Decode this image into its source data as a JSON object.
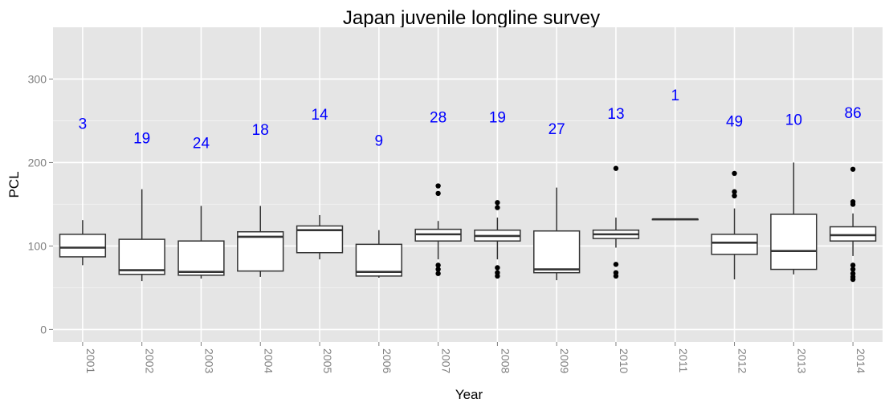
{
  "chart_data": {
    "type": "box",
    "title": "Japan juvenile longline survey",
    "xlabel": "Year",
    "ylabel": "PCL",
    "ylim": [
      -15,
      362
    ],
    "yticks": [
      0,
      100,
      200,
      300
    ],
    "grid": true,
    "categories": [
      "2001",
      "2002",
      "2003",
      "2004",
      "2005",
      "2006",
      "2007",
      "2008",
      "2009",
      "2010",
      "2011",
      "2012",
      "2013",
      "2014"
    ],
    "boxes": [
      {
        "min": 77,
        "q1": 87,
        "median": 98,
        "q3": 114,
        "max": 131,
        "outliers": [],
        "n": "3",
        "n_y": 247
      },
      {
        "min": 58,
        "q1": 66,
        "median": 71,
        "q3": 108,
        "max": 168,
        "outliers": [],
        "n": "19",
        "n_y": 230
      },
      {
        "min": 61,
        "q1": 65,
        "median": 69,
        "q3": 106,
        "max": 148,
        "outliers": [],
        "n": "24",
        "n_y": 224
      },
      {
        "min": 63,
        "q1": 70,
        "median": 111,
        "q3": 117,
        "max": 148,
        "outliers": [],
        "n": "18",
        "n_y": 240
      },
      {
        "min": 84,
        "q1": 92,
        "median": 119,
        "q3": 124,
        "max": 137,
        "outliers": [],
        "n": "14",
        "n_y": 258
      },
      {
        "min": 62,
        "q1": 64,
        "median": 69,
        "q3": 102,
        "max": 119,
        "outliers": [],
        "n": "9",
        "n_y": 227
      },
      {
        "min": 84,
        "q1": 106,
        "median": 114,
        "q3": 120,
        "max": 130,
        "outliers": [
          172,
          163,
          77,
          72,
          67
        ],
        "n": "28",
        "n_y": 255
      },
      {
        "min": 84,
        "q1": 106,
        "median": 112,
        "q3": 119,
        "max": 134,
        "outliers": [
          152,
          146,
          74,
          68,
          64
        ],
        "n": "19",
        "n_y": 255
      },
      {
        "min": 59,
        "q1": 68,
        "median": 72,
        "q3": 118,
        "max": 170,
        "outliers": [],
        "n": "27",
        "n_y": 241
      },
      {
        "min": 98,
        "q1": 109,
        "median": 114,
        "q3": 119,
        "max": 134,
        "outliers": [
          193,
          78,
          68,
          64
        ],
        "n": "13",
        "n_y": 259
      },
      {
        "min": 132,
        "q1": 132,
        "median": 132,
        "q3": 132,
        "max": 132,
        "outliers": [],
        "n": "1",
        "n_y": 281
      },
      {
        "min": 60,
        "q1": 90,
        "median": 104,
        "q3": 114,
        "max": 145,
        "outliers": [
          187,
          165,
          160
        ],
        "n": "49",
        "n_y": 250
      },
      {
        "min": 66,
        "q1": 72,
        "median": 94,
        "q3": 138,
        "max": 200,
        "outliers": [],
        "n": "10",
        "n_y": 252
      },
      {
        "min": 88,
        "q1": 106,
        "median": 113,
        "q3": 123,
        "max": 139,
        "outliers": [
          192,
          153,
          150,
          77,
          72,
          67,
          63,
          60
        ],
        "n": "86",
        "n_y": 260
      }
    ]
  },
  "colors": {
    "panel": "#e5e5e5",
    "grid_major": "#ffffff",
    "grid_minor": "#f2f2f2",
    "box_line": "#333333",
    "box_fill": "#ffffff",
    "n_label": "#0000ff",
    "tick_text": "#7f7f7f"
  }
}
